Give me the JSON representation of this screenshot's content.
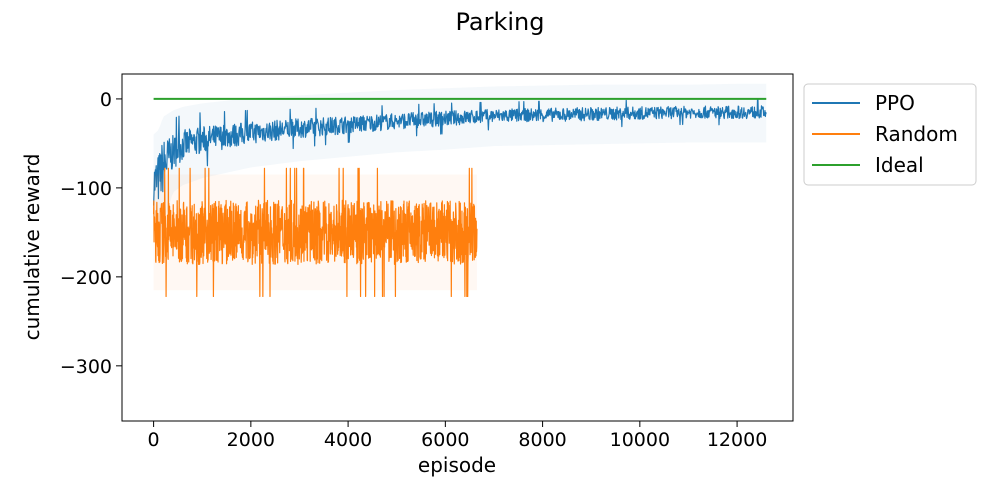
{
  "chart_data": {
    "type": "line",
    "title": "Parking",
    "xlabel": "episode",
    "ylabel": "cumulative reward",
    "xlim": [
      -650,
      13150
    ],
    "ylim": [
      -362,
      28
    ],
    "x_ticks": [
      0,
      2000,
      4000,
      6000,
      8000,
      10000,
      12000
    ],
    "x_tick_labels": [
      "0",
      "2000",
      "4000",
      "6000",
      "8000",
      "10000",
      "12000"
    ],
    "y_ticks": [
      0,
      -100,
      -200,
      -300
    ],
    "y_tick_labels": [
      "0",
      "−100",
      "−200",
      "−300"
    ],
    "grid": false,
    "legend_position": "outside-top-right",
    "series": [
      {
        "name": "PPO",
        "color": "#1f77b4",
        "x": [
          0,
          100,
          200,
          400,
          600,
          1000,
          1500,
          2000,
          3000,
          4000,
          5000,
          6000,
          7000,
          8000,
          9000,
          10000,
          11000,
          12000,
          12600
        ],
        "y": [
          -95,
          -90,
          -75,
          -60,
          -52,
          -46,
          -42,
          -38,
          -33,
          -29,
          -25,
          -22,
          -19,
          -18,
          -17,
          -16,
          -15,
          -15,
          -15
        ],
        "y_low": [
          -120,
          -125,
          -115,
          -80,
          -72,
          -64,
          -58,
          -52,
          -45,
          -40,
          -35,
          -32,
          -28,
          -27,
          -26,
          -25,
          -24,
          -24,
          -24
        ],
        "y_high": [
          -65,
          -60,
          -45,
          -38,
          -34,
          -30,
          -27,
          -24,
          -21,
          -18,
          -15,
          -13,
          -11,
          -10,
          -9,
          -9,
          -9,
          -8,
          -8
        ]
      },
      {
        "name": "Random",
        "color": "#ff7f0e",
        "x": [
          0,
          1000,
          2000,
          3000,
          4000,
          5000,
          6000,
          6650
        ],
        "y": [
          -150,
          -150,
          -150,
          -150,
          -150,
          -150,
          -150,
          -150
        ],
        "y_low": [
          -190,
          -190,
          -190,
          -190,
          -190,
          -190,
          -190,
          -190
        ],
        "y_high": [
          -110,
          -110,
          -110,
          -110,
          -110,
          -110,
          -110,
          -110
        ]
      },
      {
        "name": "Ideal",
        "color": "#2ca02c",
        "x": [
          0,
          12600
        ],
        "y": [
          0,
          0
        ]
      }
    ]
  }
}
